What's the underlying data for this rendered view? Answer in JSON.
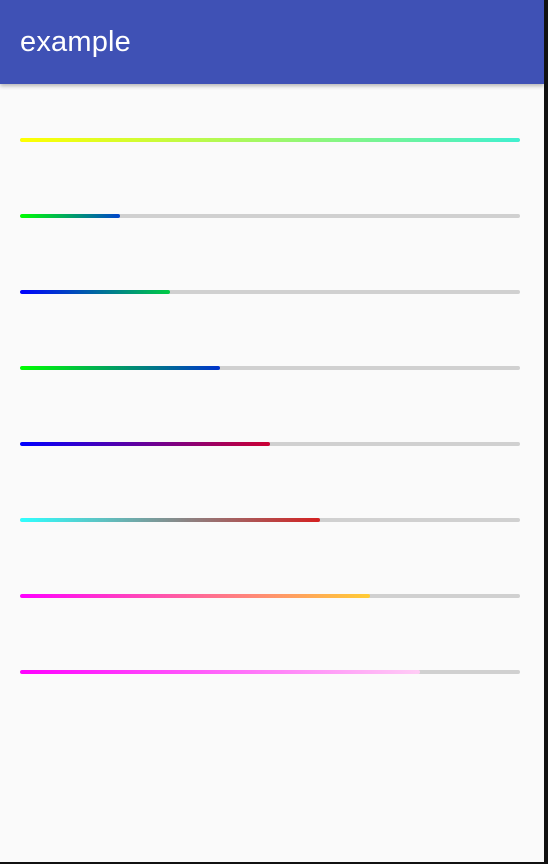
{
  "app_bar": {
    "title": "example",
    "color": "#3f51b5"
  },
  "progress_bars": [
    {
      "progress": 1.0,
      "start_color": "#ffff00",
      "end_color": "#40f0d0"
    },
    {
      "progress": 0.2,
      "start_color": "#00ff00",
      "end_color": "#0044cc"
    },
    {
      "progress": 0.3,
      "start_color": "#0000ff",
      "end_color": "#00cc44"
    },
    {
      "progress": 0.4,
      "start_color": "#00ff00",
      "end_color": "#0033cc"
    },
    {
      "progress": 0.5,
      "start_color": "#0000ff",
      "end_color": "#cc0033"
    },
    {
      "progress": 0.6,
      "start_color": "#30ffff",
      "end_color": "#d42020"
    },
    {
      "progress": 0.7,
      "start_color": "#ff00ff",
      "end_color": "#ffcc33"
    },
    {
      "progress": 0.8,
      "start_color": "#ff00ff",
      "end_color": "#ffccf5"
    }
  ],
  "track_color": "#d0d0d0"
}
